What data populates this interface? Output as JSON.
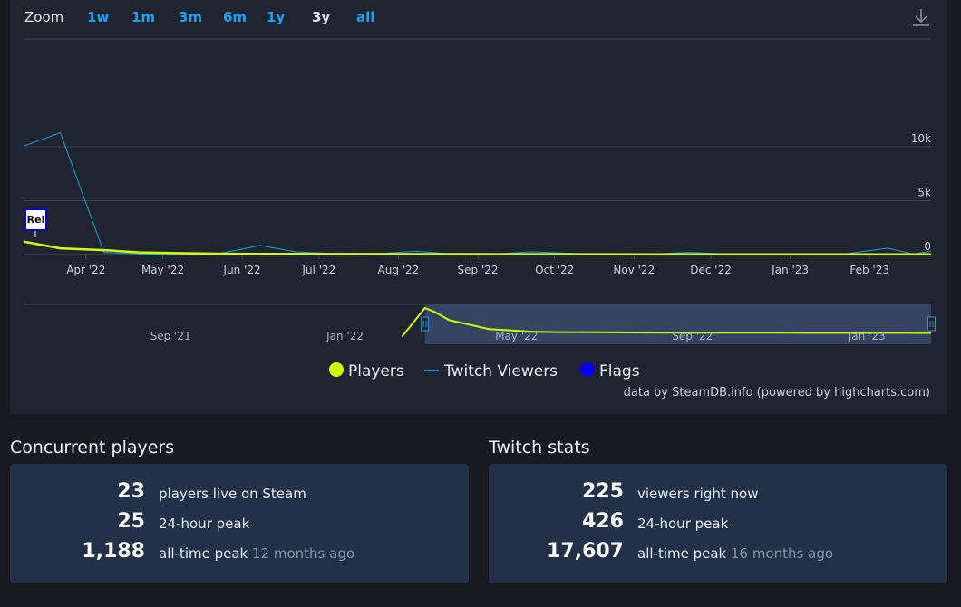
{
  "zoom": {
    "label": "Zoom",
    "options": [
      "1w",
      "1m",
      "3m",
      "6m",
      "1y",
      "3y",
      "all"
    ],
    "active": "3y"
  },
  "download_icon": "download-icon",
  "chart_data": {
    "type": "line",
    "x_range": [
      "2022-03-08",
      "2023-02-25"
    ],
    "y_range": [
      0,
      20000
    ],
    "y_ticks": [
      "0",
      "5k",
      "10k"
    ],
    "x_ticks": [
      "Apr '22",
      "May '22",
      "Jun '22",
      "Jul '22",
      "Aug '22",
      "Sep '22",
      "Oct '22",
      "Nov '22",
      "Dec '22",
      "Jan '23",
      "Feb '23"
    ],
    "grid": true,
    "flag_label": "Rel",
    "series": [
      {
        "name": "Players",
        "color": "#d2ff00",
        "points": [
          [
            "2022-03-08",
            1188
          ],
          [
            "2022-03-22",
            580
          ],
          [
            "2022-04-09",
            400
          ],
          [
            "2022-04-22",
            200
          ],
          [
            "2022-05-09",
            130
          ],
          [
            "2022-05-22",
            80
          ],
          [
            "2022-06-09",
            60
          ],
          [
            "2022-07-09",
            50
          ],
          [
            "2022-08-09",
            40
          ],
          [
            "2022-09-09",
            35
          ],
          [
            "2022-10-09",
            30
          ],
          [
            "2022-11-09",
            28
          ],
          [
            "2022-12-09",
            26
          ],
          [
            "2023-01-09",
            25
          ],
          [
            "2023-02-09",
            24
          ],
          [
            "2023-02-25",
            23
          ]
        ]
      },
      {
        "name": "Twitch Viewers",
        "color": "#1a9fe0",
        "points": [
          [
            "2022-03-08",
            10100
          ],
          [
            "2022-03-22",
            11300
          ],
          [
            "2022-04-08",
            200
          ],
          [
            "2022-04-22",
            50
          ],
          [
            "2022-05-22",
            40
          ],
          [
            "2022-06-08",
            850
          ],
          [
            "2022-06-22",
            250
          ],
          [
            "2022-07-08",
            60
          ],
          [
            "2022-07-22",
            50
          ],
          [
            "2022-08-08",
            300
          ],
          [
            "2022-08-22",
            50
          ],
          [
            "2022-09-08",
            60
          ],
          [
            "2022-09-22",
            250
          ],
          [
            "2022-10-08",
            100
          ],
          [
            "2022-10-22",
            50
          ],
          [
            "2022-11-08",
            40
          ],
          [
            "2022-11-22",
            200
          ],
          [
            "2022-12-08",
            50
          ],
          [
            "2022-12-22",
            40
          ],
          [
            "2023-01-08",
            30
          ],
          [
            "2023-01-22",
            40
          ],
          [
            "2023-02-08",
            600
          ],
          [
            "2023-02-18",
            50
          ],
          [
            "2023-02-25",
            300
          ]
        ]
      }
    ],
    "navigator": {
      "x_ticks": [
        "Sep '21",
        "Jan '22",
        "May '22",
        "Sep '22",
        "Jan '23"
      ],
      "selected_range": [
        "2022-03-08",
        "2023-02-25"
      ]
    },
    "legend": {
      "position": "bottom-center",
      "items": [
        {
          "name": "Players",
          "color": "#d2ff00"
        },
        {
          "name": "Twitch Viewers",
          "color": "#1a9fe0"
        },
        {
          "name": "Flags",
          "color": "#0000ff"
        }
      ]
    },
    "credit": "data by SteamDB.info (powered by highcharts.com)"
  },
  "concurrent": {
    "title": "Concurrent players",
    "rows": [
      {
        "value": "23",
        "label": "players live on Steam",
        "note": ""
      },
      {
        "value": "25",
        "label": "24-hour peak",
        "note": ""
      },
      {
        "value": "1,188",
        "label": "all-time peak",
        "note": "12 months ago"
      }
    ]
  },
  "twitch": {
    "title": "Twitch stats",
    "rows": [
      {
        "value": "225",
        "label": "viewers right now",
        "note": ""
      },
      {
        "value": "426",
        "label": "24-hour peak",
        "note": ""
      },
      {
        "value": "17,607",
        "label": "all-time peak",
        "note": "16 months ago"
      }
    ]
  }
}
